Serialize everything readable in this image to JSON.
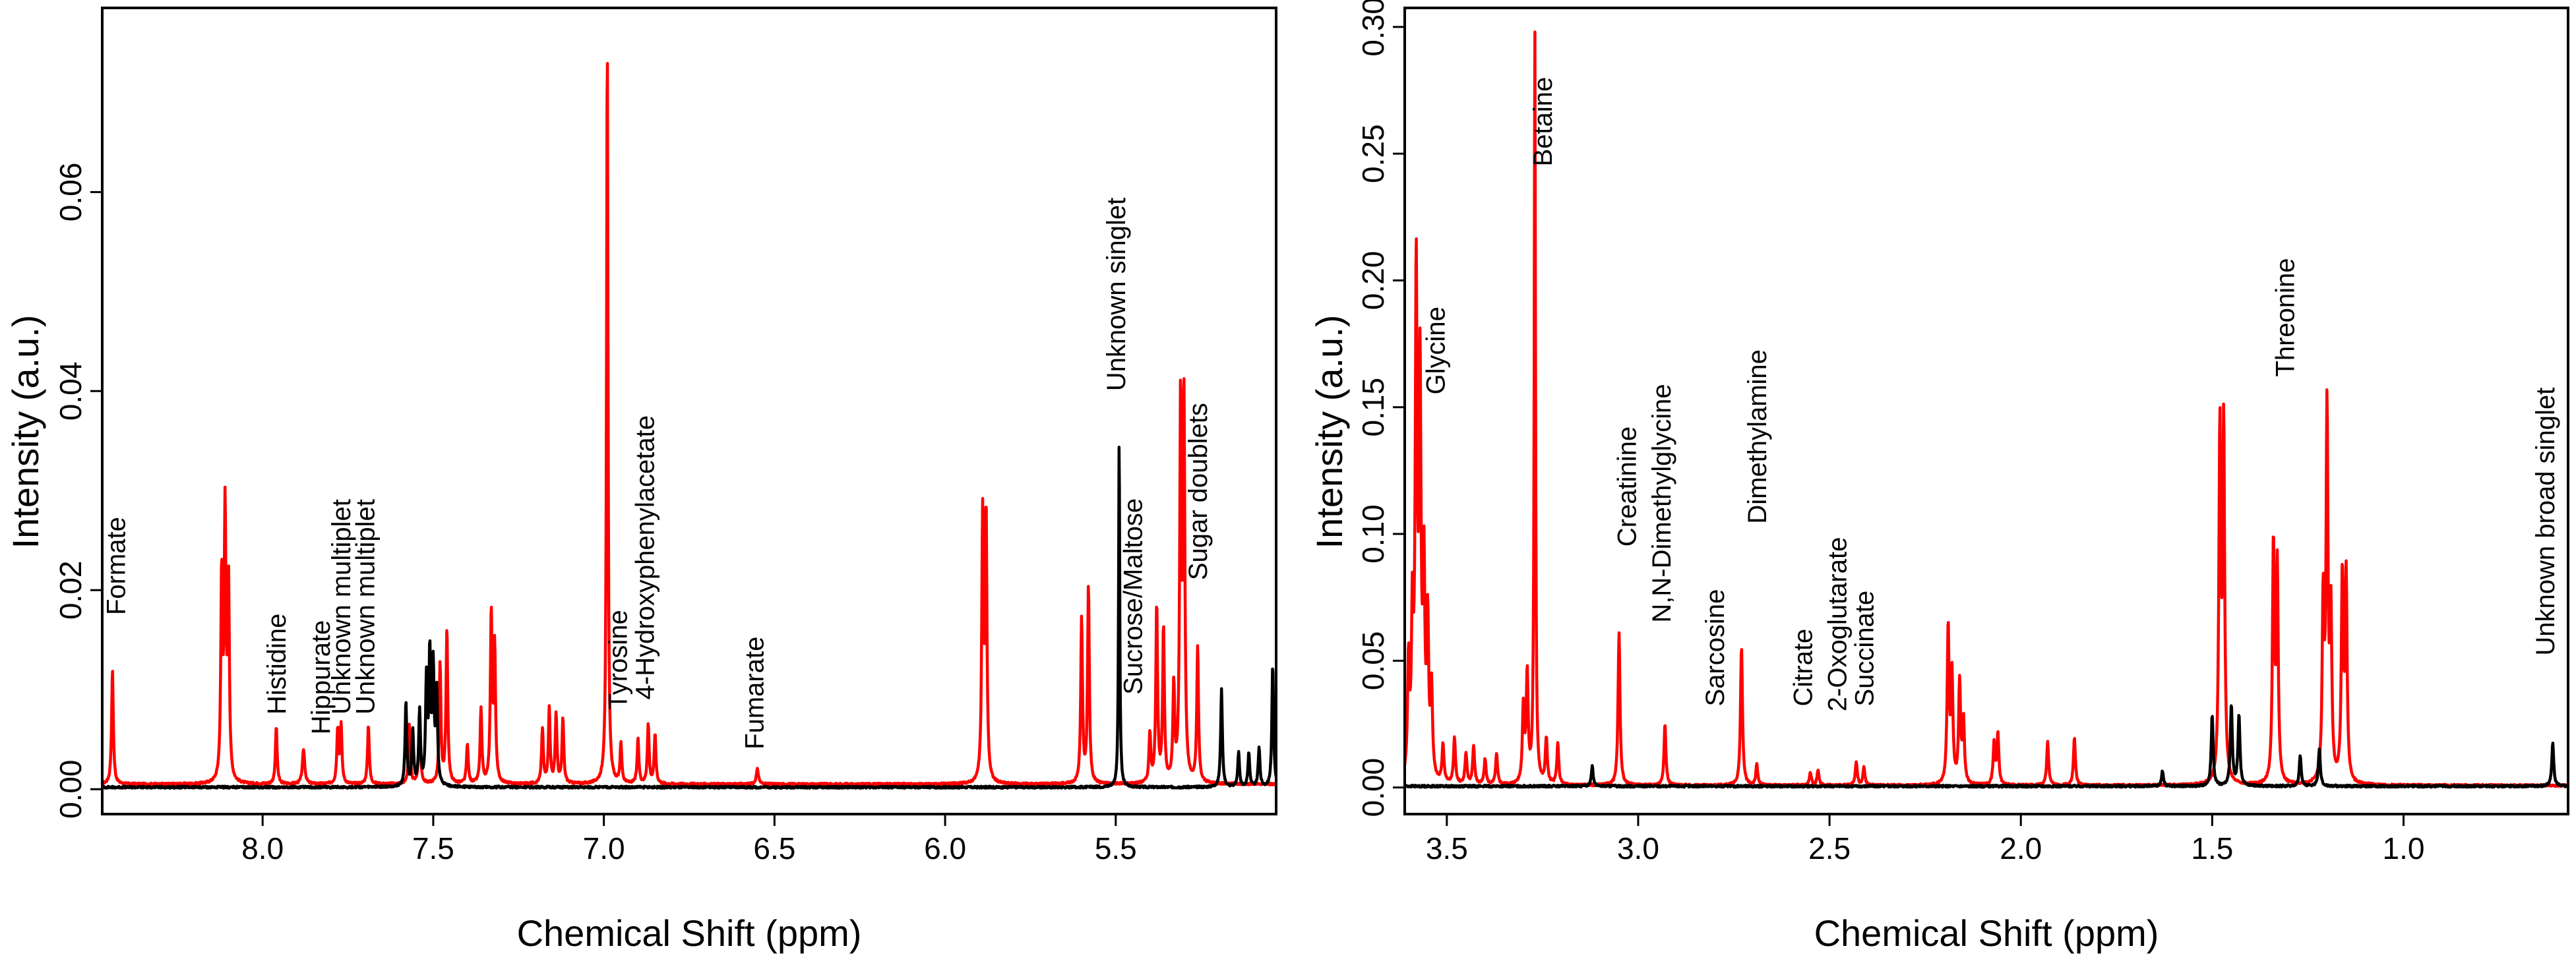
{
  "chart_data": [
    {
      "type": "line",
      "title": "",
      "xlabel": "Chemical Shift (ppm)",
      "ylabel": "Intensity (a.u.)",
      "xlim": [
        8.47,
        5.03
      ],
      "x_reversed": true,
      "ylim": [
        -0.0025,
        0.0785
      ],
      "xticks": [
        8.0,
        7.5,
        7.0,
        6.5,
        6.0,
        5.5
      ],
      "xtick_labels": [
        "8.0",
        "7.5",
        "7.0",
        "6.5",
        "6.0",
        "5.5"
      ],
      "yticks": [
        0.0,
        0.02,
        0.04,
        0.06
      ],
      "ytick_labels": [
        "0.00",
        "0.02",
        "0.04",
        "0.06"
      ],
      "grid": false,
      "baseline_red": 0.0005,
      "baseline_black": 0.0002,
      "series": [
        {
          "name": "red",
          "color": "#ff0000",
          "peaks": [
            [
              8.44,
              0.0115,
              0.003
            ],
            [
              8.12,
              0.0205,
              0.003
            ],
            [
              8.11,
              0.0265,
              0.003
            ],
            [
              8.1,
              0.02,
              0.003
            ],
            [
              7.96,
              0.0058,
              0.003
            ],
            [
              7.88,
              0.0035,
              0.004
            ],
            [
              7.78,
              0.0055,
              0.003
            ],
            [
              7.77,
              0.0058,
              0.003
            ],
            [
              7.69,
              0.006,
              0.003
            ],
            [
              7.57,
              0.006,
              0.003
            ],
            [
              7.54,
              0.007,
              0.003
            ],
            [
              7.48,
              0.012,
              0.003
            ],
            [
              7.46,
              0.0155,
              0.003
            ],
            [
              7.4,
              0.004,
              0.003
            ],
            [
              7.36,
              0.0075,
              0.003
            ],
            [
              7.33,
              0.017,
              0.003
            ],
            [
              7.32,
              0.0135,
              0.003
            ],
            [
              7.18,
              0.0055,
              0.003
            ],
            [
              7.16,
              0.0075,
              0.003
            ],
            [
              7.14,
              0.007,
              0.003
            ],
            [
              7.12,
              0.0065,
              0.003
            ],
            [
              6.99,
              0.0755,
              0.0025
            ],
            [
              6.95,
              0.004,
              0.003
            ],
            [
              6.9,
              0.0045,
              0.003
            ],
            [
              6.87,
              0.006,
              0.003
            ],
            [
              6.85,
              0.005,
              0.003
            ],
            [
              6.55,
              0.0015,
              0.004
            ],
            [
              5.89,
              0.0265,
              0.003
            ],
            [
              5.88,
              0.0268,
              0.003
            ],
            [
              5.6,
              0.0165,
              0.003
            ],
            [
              5.58,
              0.0198,
              0.003
            ],
            [
              5.4,
              0.005,
              0.003
            ],
            [
              5.38,
              0.018,
              0.003
            ],
            [
              5.36,
              0.0155,
              0.003
            ],
            [
              5.33,
              0.0095,
              0.003
            ],
            [
              5.31,
              0.0385,
              0.003
            ],
            [
              5.3,
              0.0375,
              0.003
            ],
            [
              5.26,
              0.0135,
              0.003
            ]
          ]
        },
        {
          "name": "black",
          "color": "#000000",
          "peaks": [
            [
              7.58,
              0.0085,
              0.003
            ],
            [
              7.56,
              0.0055,
              0.003
            ],
            [
              7.54,
              0.0075,
              0.003
            ],
            [
              7.52,
              0.0105,
              0.003
            ],
            [
              7.51,
              0.013,
              0.003
            ],
            [
              7.5,
              0.0115,
              0.003
            ],
            [
              7.49,
              0.0095,
              0.003
            ],
            [
              5.49,
              0.0358,
              0.002
            ],
            [
              5.19,
              0.0098,
              0.003
            ],
            [
              5.14,
              0.0035,
              0.003
            ],
            [
              5.11,
              0.0035,
              0.003
            ],
            [
              5.08,
              0.004,
              0.003
            ],
            [
              5.04,
              0.0122,
              0.003
            ]
          ]
        }
      ],
      "annotations": [
        {
          "text": "Formate",
          "x": 8.43,
          "y": 0.0175
        },
        {
          "text": "Histidine",
          "x": 7.96,
          "y": 0.0075
        },
        {
          "text": "Hippurate",
          "x": 7.83,
          "y": 0.0055
        },
        {
          "text": "Unknown multiplet",
          "x": 7.77,
          "y": 0.0075
        },
        {
          "text": "Unknown multiplet",
          "x": 7.7,
          "y": 0.0075
        },
        {
          "text": "Tyrosine",
          "x": 6.96,
          "y": 0.008
        },
        {
          "text": "4-Hydroxyphenylacetate",
          "x": 6.88,
          "y": 0.009
        },
        {
          "text": "Fumarate",
          "x": 6.56,
          "y": 0.004
        },
        {
          "text": "Unknown singlet",
          "x": 5.5,
          "y": 0.04
        },
        {
          "text": "Sucrose/Maltose",
          "x": 5.45,
          "y": 0.0095
        },
        {
          "text": "Sugar doublets",
          "x": 5.26,
          "y": 0.021
        }
      ]
    },
    {
      "type": "line",
      "title": "",
      "xlabel": "Chemical Shift (ppm)",
      "ylabel": "Intensity (a.u.)",
      "xlim": [
        3.61,
        0.57
      ],
      "x_reversed": true,
      "ylim": [
        -0.0105,
        0.3075
      ],
      "xticks": [
        3.5,
        3.0,
        2.5,
        2.0,
        1.5,
        1.0
      ],
      "xtick_labels": [
        "3.5",
        "3.0",
        "2.5",
        "2.0",
        "1.5",
        "1.0"
      ],
      "yticks": [
        0.0,
        0.05,
        0.1,
        0.15,
        0.2,
        0.25,
        0.3
      ],
      "ytick_labels": [
        "0.00",
        "0.05",
        "0.10",
        "0.15",
        "0.20",
        "0.25",
        "0.30"
      ],
      "grid": false,
      "baseline_red": 0.0008,
      "baseline_black": 0.0005,
      "series": [
        {
          "name": "red",
          "color": "#ff0000",
          "peaks": [
            [
              3.6,
              0.045,
              0.003
            ],
            [
              3.59,
              0.06,
              0.003
            ],
            [
              3.58,
              0.197,
              0.003
            ],
            [
              3.57,
              0.155,
              0.003
            ],
            [
              3.56,
              0.08,
              0.003
            ],
            [
              3.55,
              0.06,
              0.003
            ],
            [
              3.54,
              0.035,
              0.003
            ],
            [
              3.51,
              0.015,
              0.003
            ],
            [
              3.48,
              0.018,
              0.003
            ],
            [
              3.45,
              0.012,
              0.003
            ],
            [
              3.43,
              0.015,
              0.003
            ],
            [
              3.4,
              0.01,
              0.003
            ],
            [
              3.37,
              0.012,
              0.003
            ],
            [
              3.3,
              0.03,
              0.003
            ],
            [
              3.29,
              0.042,
              0.003
            ],
            [
              3.27,
              0.3,
              0.002
            ],
            [
              3.24,
              0.018,
              0.003
            ],
            [
              3.21,
              0.016,
              0.003
            ],
            [
              3.05,
              0.06,
              0.003
            ],
            [
              2.93,
              0.024,
              0.003
            ],
            [
              2.73,
              0.055,
              0.003
            ],
            [
              2.69,
              0.008,
              0.003
            ],
            [
              2.55,
              0.005,
              0.003
            ],
            [
              2.53,
              0.006,
              0.003
            ],
            [
              2.43,
              0.009,
              0.003
            ],
            [
              2.41,
              0.007,
              0.003
            ],
            [
              2.19,
              0.062,
              0.003
            ],
            [
              2.18,
              0.042,
              0.003
            ],
            [
              2.16,
              0.04,
              0.003
            ],
            [
              2.15,
              0.025,
              0.003
            ],
            [
              2.07,
              0.016,
              0.003
            ],
            [
              2.06,
              0.02,
              0.003
            ],
            [
              1.93,
              0.017,
              0.003
            ],
            [
              1.86,
              0.019,
              0.003
            ],
            [
              1.48,
              0.138,
              0.003
            ],
            [
              1.47,
              0.14,
              0.003
            ],
            [
              1.34,
              0.094,
              0.003
            ],
            [
              1.33,
              0.085,
              0.003
            ],
            [
              1.21,
              0.07,
              0.003
            ],
            [
              1.2,
              0.145,
              0.003
            ],
            [
              1.19,
              0.065,
              0.003
            ],
            [
              1.16,
              0.081,
              0.003
            ],
            [
              1.15,
              0.081,
              0.003
            ]
          ]
        },
        {
          "name": "black",
          "color": "#000000",
          "peaks": [
            [
              3.12,
              0.008,
              0.003
            ],
            [
              1.63,
              0.006,
              0.003
            ],
            [
              1.5,
              0.028,
              0.003
            ],
            [
              1.45,
              0.032,
              0.003
            ],
            [
              1.43,
              0.028,
              0.003
            ],
            [
              1.27,
              0.012,
              0.003
            ],
            [
              1.22,
              0.015,
              0.003
            ],
            [
              0.61,
              0.017,
              0.003
            ]
          ]
        }
      ],
      "annotations": [
        {
          "text": "Glycine",
          "x": 3.53,
          "y": 0.155
        },
        {
          "text": "Betaine",
          "x": 3.25,
          "y": 0.245
        },
        {
          "text": "Creatinine",
          "x": 3.03,
          "y": 0.095
        },
        {
          "text": "N,N-Dimethylglycine",
          "x": 2.94,
          "y": 0.065
        },
        {
          "text": "Sarcosine",
          "x": 2.8,
          "y": 0.032
        },
        {
          "text": "Dimethylamine",
          "x": 2.69,
          "y": 0.104
        },
        {
          "text": "Citrate",
          "x": 2.57,
          "y": 0.032
        },
        {
          "text": "2-Oxoglutarate",
          "x": 2.48,
          "y": 0.03
        },
        {
          "text": "Succinate",
          "x": 2.41,
          "y": 0.032
        },
        {
          "text": "Threonine",
          "x": 1.31,
          "y": 0.162
        },
        {
          "text": "Unknown broad singlet",
          "x": 0.63,
          "y": 0.052
        }
      ]
    }
  ]
}
